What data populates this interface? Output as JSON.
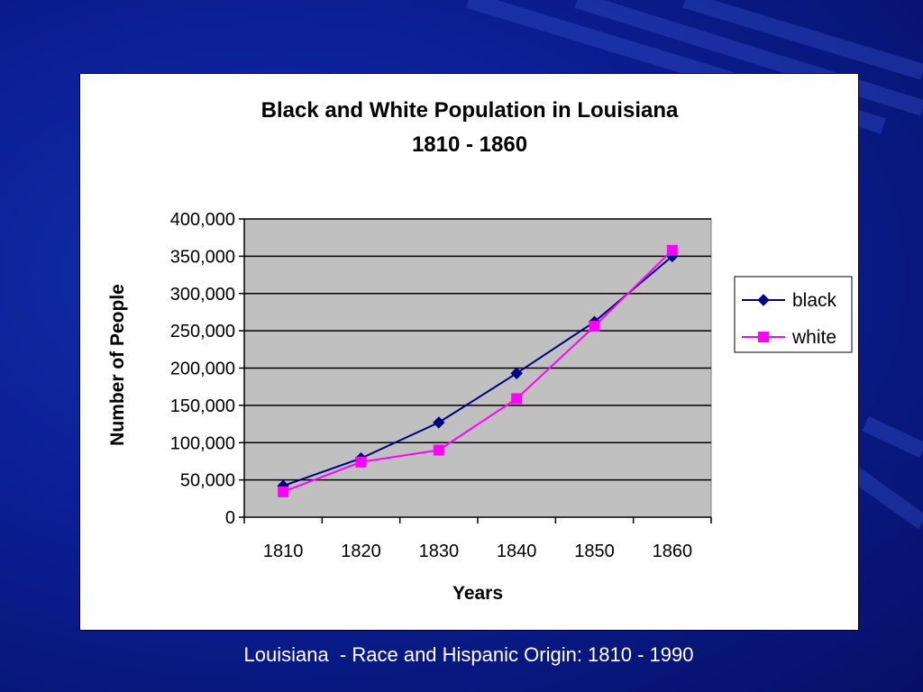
{
  "colors": {
    "background": "#0b1f96",
    "plot_area": "#c0c0c0",
    "black_series": "#000080",
    "white_series": "#ff00ff"
  },
  "caption": "Louisiana  - Race and Hispanic Origin: 1810 - 1990",
  "chart_data": {
    "type": "line",
    "title": [
      "Black and White Population in Louisiana",
      "1810 - 1860"
    ],
    "xlabel": "Years",
    "ylabel": "Number of People",
    "categories": [
      "1810",
      "1820",
      "1830",
      "1840",
      "1850",
      "1860"
    ],
    "y_tick_labels": [
      "0",
      "50,000",
      "100,000",
      "150,000",
      "200,000",
      "250,000",
      "300,000",
      "350,000",
      "400,000"
    ],
    "ylim": [
      0,
      400000
    ],
    "grid": true,
    "legend_position": "right",
    "series": [
      {
        "name": "black",
        "marker": "diamond",
        "color": "#000080",
        "values": [
          42000,
          79000,
          127000,
          193000,
          262000,
          350000
        ]
      },
      {
        "name": "white",
        "marker": "square",
        "color": "#ff00ff",
        "values": [
          34000,
          74000,
          90000,
          159000,
          256000,
          358000
        ]
      }
    ]
  }
}
